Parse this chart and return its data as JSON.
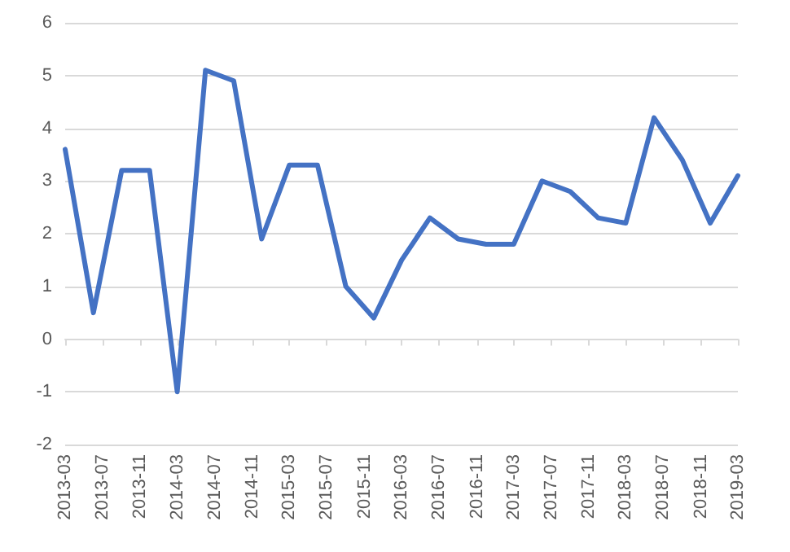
{
  "chart_data": {
    "type": "line",
    "x": [
      "2013-03",
      "2013-06",
      "2013-09",
      "2013-12",
      "2014-03",
      "2014-06",
      "2014-09",
      "2014-12",
      "2015-03",
      "2015-06",
      "2015-09",
      "2015-12",
      "2016-03",
      "2016-06",
      "2016-09",
      "2016-12",
      "2017-03",
      "2017-06",
      "2017-09",
      "2017-12",
      "2018-03",
      "2018-06",
      "2018-09",
      "2018-12",
      "2019-03"
    ],
    "series": [
      {
        "color": "#4472c4",
        "values": [
          3.6,
          0.5,
          3.2,
          3.2,
          -1.0,
          5.1,
          4.9,
          1.9,
          3.3,
          3.3,
          1.0,
          0.4,
          1.5,
          2.3,
          1.9,
          1.8,
          1.8,
          3.0,
          2.8,
          2.3,
          2.2,
          4.2,
          3.4,
          2.2,
          3.1
        ]
      }
    ],
    "xlim": [
      "2013-03",
      "2019-03"
    ],
    "xticks": [
      "2013-03",
      "2013-07",
      "2013-11",
      "2014-03",
      "2014-07",
      "2014-11",
      "2015-03",
      "2015-07",
      "2015-11",
      "2016-03",
      "2016-07",
      "2016-11",
      "2017-03",
      "2017-07",
      "2017-11",
      "2018-03",
      "2018-07",
      "2018-11",
      "2019-03"
    ],
    "ylim": [
      -2,
      6
    ],
    "yticks": [
      -2,
      -1,
      0,
      1,
      2,
      3,
      4,
      5,
      6
    ],
    "grid": "y",
    "marker": "none",
    "line_style": "solid"
  }
}
